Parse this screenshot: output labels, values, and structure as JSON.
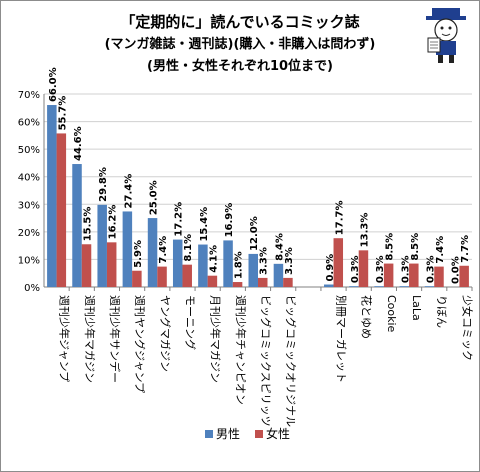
{
  "title": {
    "line1": "「定期的に」読んでいるコミック誌",
    "line2": "(マンガ雑誌・週刊誌)(購入・非購入は問わず)",
    "line3": "(男性・女性それぞれ10位まで)"
  },
  "colors": {
    "male": "#4f81bd",
    "female": "#c0504d",
    "grid": "#d0d0d0",
    "axis": "#808080"
  },
  "mascot_icon": "mascot-character-icon",
  "chart_data": {
    "type": "bar",
    "categories": [
      "週刊少年ジャンプ",
      "週刊少年マガジン",
      "週刊少年サンデー",
      "週刊ヤングジャンプ",
      "ヤングマガジン",
      "モーニング",
      "月刊少年マガジン",
      "週刊少年チャンピオン",
      "ビッグコミックスピリッツ",
      "ビッグコミックオリジナル",
      "",
      "別冊マーガレット",
      "花とゆめ",
      "Cookie",
      "LaLa",
      "りぼん",
      "少女コミック"
    ],
    "series": [
      {
        "name": "男性",
        "values": [
          66.0,
          44.6,
          29.8,
          27.4,
          25.0,
          17.2,
          15.4,
          16.9,
          12.0,
          8.4,
          null,
          0.9,
          0.3,
          0.3,
          0.3,
          0.3,
          0.0
        ],
        "labels": [
          "66.0%",
          "44.6%",
          "29.8%",
          "27.4%",
          "25.0%",
          "17.2%",
          "15.4%",
          "16.9%",
          "12.0%",
          "8.4%",
          "",
          "0.9%",
          "0.3%",
          "0.3%",
          "0.3%",
          "0.3%",
          "0.0%"
        ]
      },
      {
        "name": "女性",
        "values": [
          55.7,
          15.5,
          16.2,
          5.9,
          7.4,
          8.1,
          4.1,
          1.8,
          3.3,
          3.3,
          null,
          17.7,
          13.3,
          8.5,
          8.5,
          7.4,
          7.7
        ],
        "labels": [
          "55.7%",
          "15.5%",
          "16.2%",
          "5.9%",
          "7.4%",
          "8.1%",
          "4.1%",
          "1.8%",
          "3.3%",
          "3.3%",
          "",
          "17.7%",
          "13.3%",
          "8.5%",
          "8.5%",
          "7.4%",
          "7.7%"
        ]
      }
    ],
    "y_ticks": [
      "0%",
      "10%",
      "20%",
      "30%",
      "40%",
      "50%",
      "60%",
      "70%"
    ],
    "ylim": [
      0,
      70
    ],
    "grid": true,
    "legend": {
      "position": "bottom-center",
      "items": [
        "男性",
        "女性"
      ]
    }
  }
}
